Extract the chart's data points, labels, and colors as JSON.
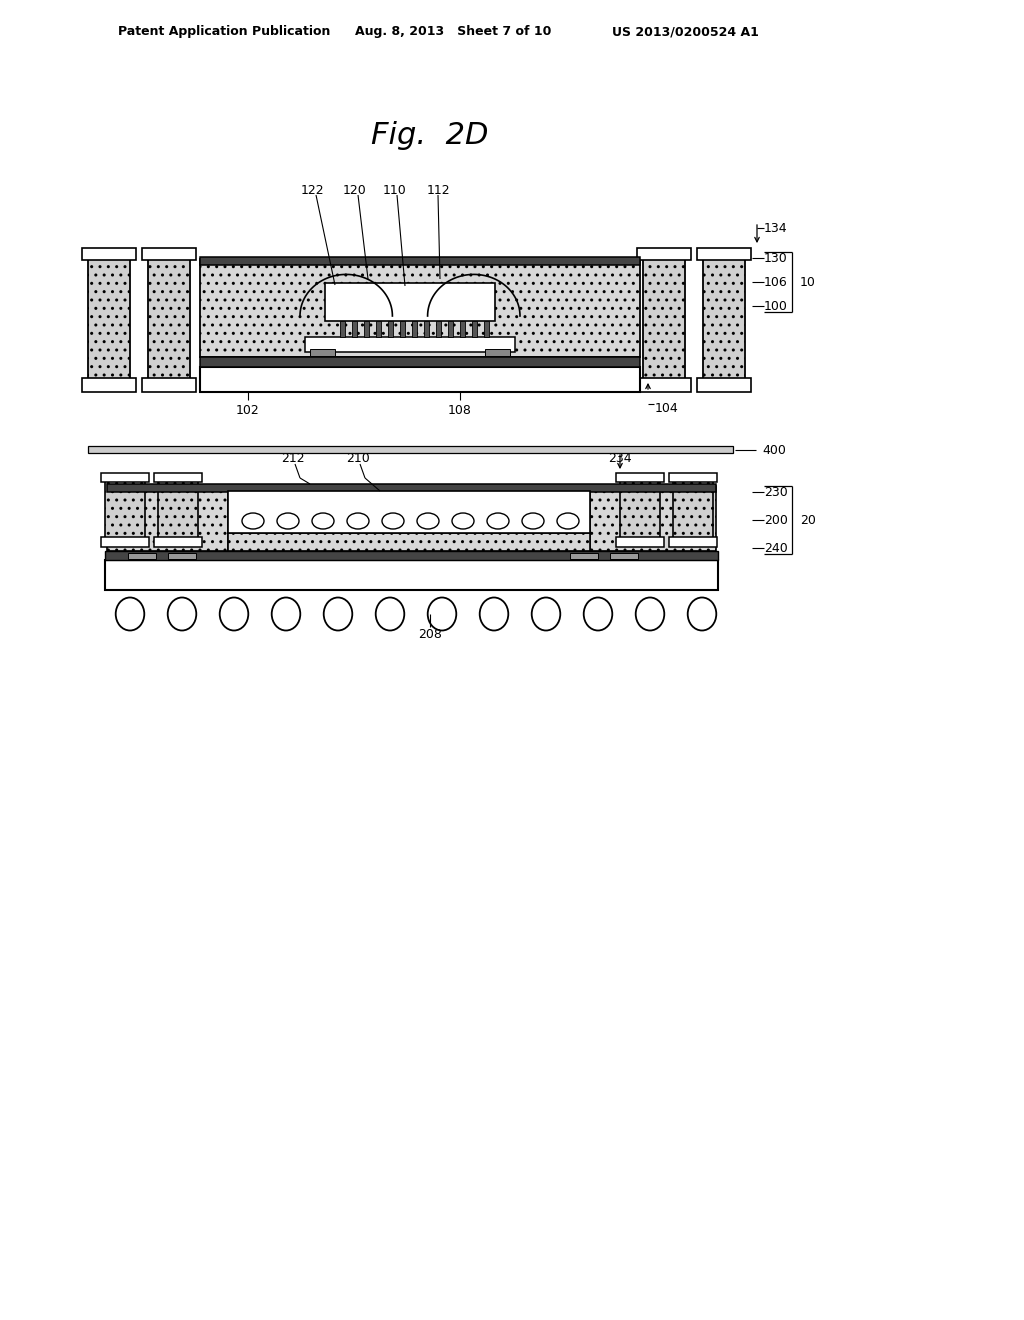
{
  "header_left": "Patent Application Publication",
  "header_mid": "Aug. 8, 2013   Sheet 7 of 10",
  "header_right": "US 2013/0200524 A1",
  "title": "Fig.  2D",
  "bg": "#ffffff"
}
